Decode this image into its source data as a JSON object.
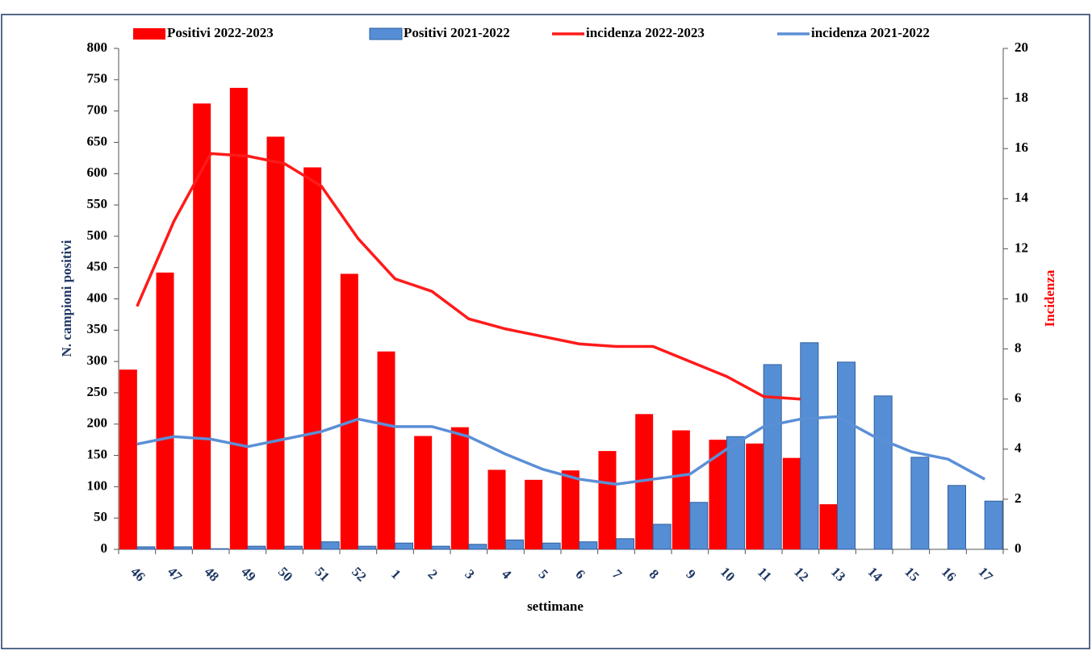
{
  "chart_data": {
    "type": "bar_line",
    "x_label": "settimane",
    "y_label": "N. campioni positivi",
    "y2_label": "Incidenza",
    "legend": "top",
    "categories": [
      "46",
      "47",
      "48",
      "49",
      "50",
      "51",
      "52",
      "1",
      "2",
      "3",
      "4",
      "5",
      "6",
      "7",
      "8",
      "9",
      "10",
      "11",
      "12",
      "13",
      "14",
      "15",
      "16",
      "17"
    ],
    "series": [
      {
        "name": "Positivi 2022-2023",
        "kind": "bar",
        "color": "#ff0000",
        "values": [
          287,
          442,
          712,
          737,
          659,
          610,
          440,
          316,
          181,
          195,
          127,
          111,
          126,
          157,
          216,
          190,
          175,
          169,
          146,
          72,
          null,
          null,
          null,
          null
        ]
      },
      {
        "name": "Positivi 2021-2022",
        "kind": "bar",
        "color": "#558ed5",
        "values": [
          4,
          4,
          1,
          5,
          5,
          12,
          5,
          10,
          5,
          8,
          15,
          10,
          12,
          17,
          40,
          75,
          180,
          295,
          330,
          299,
          245,
          147,
          102,
          77
        ]
      },
      {
        "name": "incidenza 2022-2023",
        "kind": "line",
        "axis": "y2",
        "color": "#ff1a1a",
        "values": [
          9.7,
          13.1,
          15.8,
          15.7,
          15.4,
          14.5,
          12.4,
          10.8,
          10.3,
          9.2,
          8.8,
          8.5,
          8.2,
          8.1,
          8.1,
          7.5,
          6.9,
          6.1,
          6.0,
          null,
          null,
          null,
          null,
          null
        ]
      },
      {
        "name": "incidenza 2021-2022",
        "kind": "line",
        "axis": "y2",
        "color": "#5b8fd6",
        "values": [
          4.2,
          4.5,
          4.4,
          4.1,
          4.4,
          4.7,
          5.2,
          4.9,
          4.9,
          4.5,
          3.8,
          3.2,
          2.8,
          2.6,
          2.8,
          3.0,
          4.0,
          4.9,
          5.2,
          5.3,
          4.5,
          3.9,
          3.6,
          2.8
        ]
      }
    ],
    "ylim": [
      0,
      800
    ],
    "yticks": [
      0,
      50,
      100,
      150,
      200,
      250,
      300,
      350,
      400,
      450,
      500,
      550,
      600,
      650,
      700,
      750,
      800
    ],
    "y2lim": [
      0,
      20
    ],
    "y2ticks": [
      0,
      2,
      4,
      6,
      8,
      10,
      12,
      14,
      16,
      18,
      20
    ]
  }
}
